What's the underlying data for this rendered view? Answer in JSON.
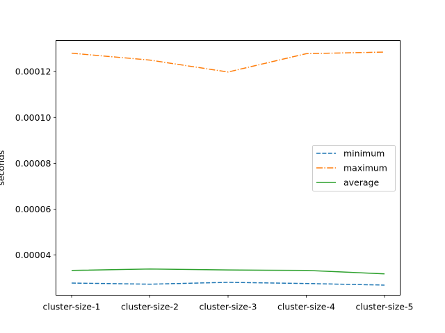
{
  "chart_data": {
    "type": "line",
    "title": "",
    "xlabel": "",
    "ylabel": "seconds",
    "categories": [
      "cluster-size-1",
      "cluster-size-2",
      "cluster-size-3",
      "cluster-size-4",
      "cluster-size-5"
    ],
    "ylim": [
      2.25e-05,
      0.0001335
    ],
    "yticks": [
      "0.00004",
      "0.00006",
      "0.00008",
      "0.00010",
      "0.00012"
    ],
    "ytick_values": [
      4e-05,
      6e-05,
      8e-05,
      0.0001,
      0.00012
    ],
    "grid": false,
    "legend_position": "center-right",
    "series": [
      {
        "name": "minimum",
        "color": "#1f77b4",
        "style": "dashed",
        "values": [
          2.78e-05,
          2.73e-05,
          2.81e-05,
          2.76e-05,
          2.69e-05
        ]
      },
      {
        "name": "maximum",
        "color": "#ff7f0e",
        "style": "dashdot",
        "values": [
          0.000128,
          0.000125,
          0.0001198,
          0.0001278,
          0.0001285
        ]
      },
      {
        "name": "average",
        "color": "#2ca02c",
        "style": "solid",
        "values": [
          3.33e-05,
          3.39e-05,
          3.35e-05,
          3.33e-05,
          3.18e-05
        ]
      }
    ]
  }
}
